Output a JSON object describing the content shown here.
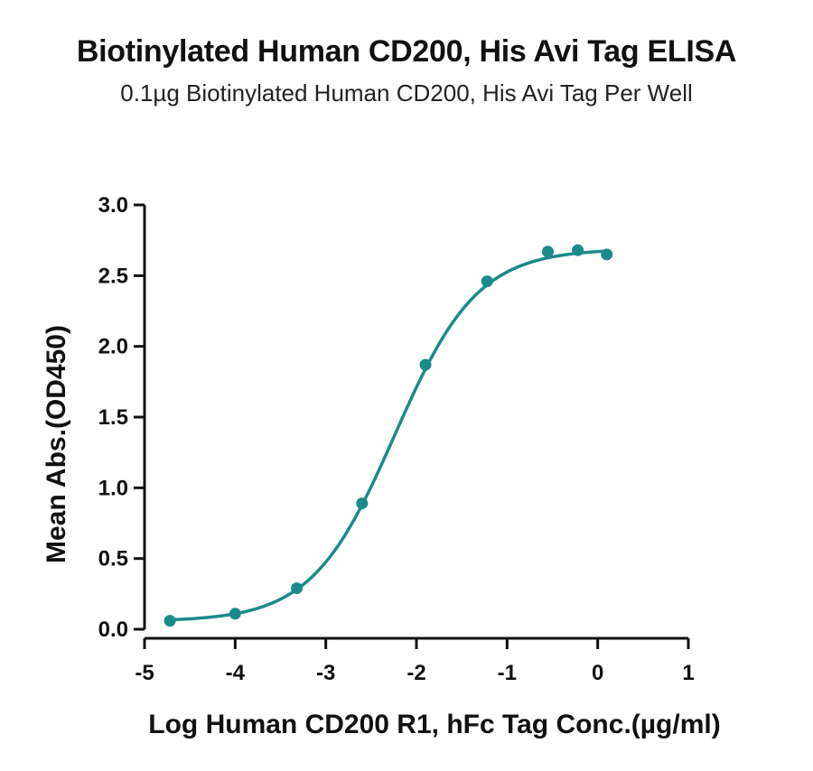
{
  "chart_data": {
    "type": "scatter",
    "title": "Biotinylated Human CD200, His Avi Tag ELISA",
    "subtitle": "0.1µg Biotinylated Human CD200, His Avi Tag Per Well",
    "xlabel": "Log Human CD200 R1, hFc Tag Conc.(µg/ml)",
    "ylabel": "Mean Abs.(OD450)",
    "xlim": [
      -5,
      1
    ],
    "ylim": [
      0,
      3.0
    ],
    "xticks": [
      -5,
      -4,
      -3,
      -2,
      -1,
      0,
      1
    ],
    "xtick_labels": [
      "-5",
      "-4",
      "-3",
      "-2",
      "-1",
      "0",
      "1"
    ],
    "yticks": [
      0,
      0.5,
      1.0,
      1.5,
      2.0,
      2.5,
      3.0
    ],
    "ytick_labels": [
      "0.0",
      "0.5",
      "1.0",
      "1.5",
      "2.0",
      "2.5",
      "3.0"
    ],
    "grid": false,
    "legend": "none",
    "color": "#1a8a8a",
    "series": [
      {
        "x": [
          -4.72,
          -4.0,
          -3.32,
          -2.6,
          -1.9,
          -1.22,
          -0.55,
          -0.22,
          0.1
        ],
        "y": [
          0.06,
          0.11,
          0.29,
          0.89,
          1.87,
          2.46,
          2.67,
          2.68,
          2.65
        ]
      }
    ],
    "fit_curve": {
      "model": "4PL",
      "bottom": 0.055,
      "top": 2.69,
      "log_ec50": -2.24,
      "hill_slope": 0.95
    }
  }
}
